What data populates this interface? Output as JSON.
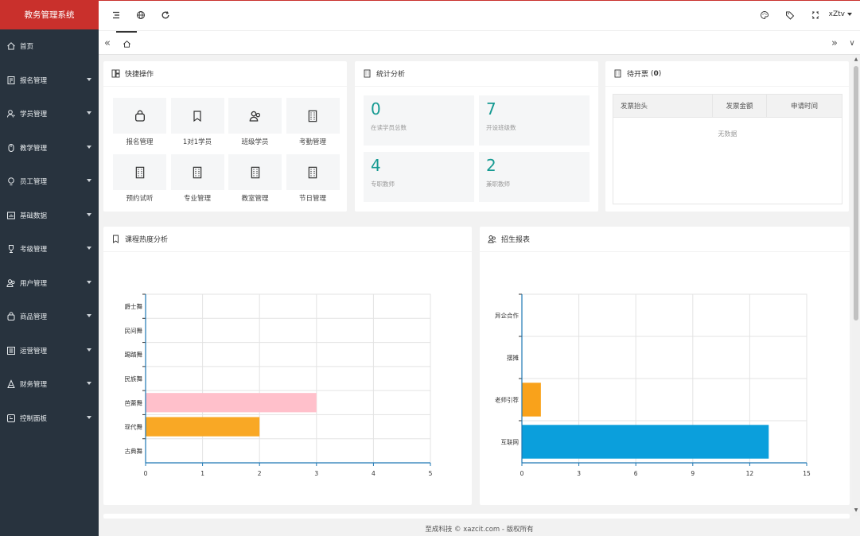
{
  "app": {
    "title": "教务管理系统"
  },
  "sidebar": {
    "items": [
      {
        "label": "首页",
        "icon": "home-icon",
        "has_submenu": false
      },
      {
        "label": "报名管理",
        "icon": "form-icon",
        "has_submenu": true
      },
      {
        "label": "学员管理",
        "icon": "user-icon",
        "has_submenu": true
      },
      {
        "label": "教学管理",
        "icon": "mouse-icon",
        "has_submenu": true
      },
      {
        "label": "员工管理",
        "icon": "bulb-icon",
        "has_submenu": true
      },
      {
        "label": "基础数据",
        "icon": "data-icon",
        "has_submenu": true
      },
      {
        "label": "考级管理",
        "icon": "trophy-icon",
        "has_submenu": true
      },
      {
        "label": "用户管理",
        "icon": "users-icon",
        "has_submenu": true
      },
      {
        "label": "商品管理",
        "icon": "bag-icon",
        "has_submenu": true
      },
      {
        "label": "运营管理",
        "icon": "list-icon",
        "has_submenu": true
      },
      {
        "label": "财务管理",
        "icon": "finance-icon",
        "has_submenu": true
      },
      {
        "label": "控制面板",
        "icon": "panel-icon",
        "has_submenu": true
      }
    ]
  },
  "header": {
    "user": "xZtv",
    "icons": [
      "menu-toggle-icon",
      "globe-icon",
      "refresh-icon",
      "palette-icon",
      "tag-icon",
      "fullscreen-icon"
    ]
  },
  "tabs": {
    "home_icon": "home-icon"
  },
  "quick_ops": {
    "title": "快捷操作",
    "items": [
      {
        "label": "报名管理",
        "icon": "bag-icon"
      },
      {
        "label": "1对1学员",
        "icon": "bookmark-icon"
      },
      {
        "label": "班级学员",
        "icon": "users-icon"
      },
      {
        "label": "考勤管理",
        "icon": "building-icon"
      },
      {
        "label": "预约试听",
        "icon": "building-icon"
      },
      {
        "label": "专业管理",
        "icon": "building-icon"
      },
      {
        "label": "教室管理",
        "icon": "building-icon"
      },
      {
        "label": "节日管理",
        "icon": "building-icon"
      }
    ]
  },
  "stats": {
    "title": "统计分析",
    "items": [
      {
        "value": "0",
        "label": "在读学员总数"
      },
      {
        "value": "7",
        "label": "开设班级数"
      },
      {
        "value": "4",
        "label": "专职教师"
      },
      {
        "value": "2",
        "label": "兼职教师"
      }
    ]
  },
  "invoices": {
    "title": "待开票",
    "count": "0",
    "columns": [
      "发票抬头",
      "发票金额",
      "申请时间"
    ],
    "empty_text": "无数据"
  },
  "course_chart": {
    "title": "课程热度分析",
    "chart_data": {
      "type": "bar",
      "orientation": "horizontal",
      "categories": [
        "古典舞",
        "现代舞",
        "芭蕾舞",
        "民族舞",
        "踢踏舞",
        "民间舞",
        "爵士舞"
      ],
      "values": [
        0,
        2,
        3,
        0,
        0,
        0,
        0
      ],
      "bar_colors": [
        "#f9a825",
        "#f9a825",
        "#ffc0cb",
        "#f9a825",
        "#f9a825",
        "#f9a825",
        "#f9a825"
      ],
      "xlim": [
        0,
        5
      ],
      "xticks": [
        0,
        1,
        2,
        3,
        4,
        5
      ],
      "grid": true
    }
  },
  "enroll_chart": {
    "title": "招生报表",
    "chart_data": {
      "type": "bar",
      "orientation": "horizontal",
      "categories": [
        "互联网",
        "老师引荐",
        "摆摊",
        "异企合作"
      ],
      "values": [
        13,
        1,
        0,
        0
      ],
      "bar_colors": [
        "#0b9fdc",
        "#f9a21b",
        "#f9a21b",
        "#f9a21b"
      ],
      "xlim": [
        0,
        15
      ],
      "xticks": [
        0,
        3,
        6,
        9,
        12,
        15
      ],
      "grid": true
    }
  },
  "footer": {
    "text": "至成科技 © xazcit.com - 版权所有"
  }
}
